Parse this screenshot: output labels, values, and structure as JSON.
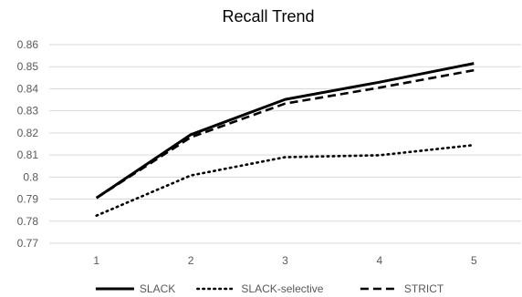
{
  "chart_data": {
    "type": "line",
    "title": "Recall Trend",
    "xlabel": "",
    "ylabel": "",
    "categories": [
      "1",
      "2",
      "3",
      "4",
      "5"
    ],
    "ylim": [
      0.77,
      0.86
    ],
    "yticks": [
      "0.86",
      "0.85",
      "0.84",
      "0.83",
      "0.82",
      "0.81",
      "0.8",
      "0.79",
      "0.78",
      "0.77"
    ],
    "grid": "horizontal",
    "legend_position": "bottom",
    "series": [
      {
        "name": "SLACK",
        "values": [
          0.7905,
          0.8192,
          0.8352,
          0.843,
          0.8515
        ],
        "color": "#000000",
        "style": "solid"
      },
      {
        "name": "SLACK-selective",
        "values": [
          0.7825,
          0.8007,
          0.809,
          0.8099,
          0.8145
        ],
        "color": "#000000",
        "style": "dotted"
      },
      {
        "name": "STRICT",
        "values": [
          0.7905,
          0.818,
          0.8333,
          0.8405,
          0.8484
        ],
        "color": "#000000",
        "style": "dashed"
      }
    ]
  }
}
